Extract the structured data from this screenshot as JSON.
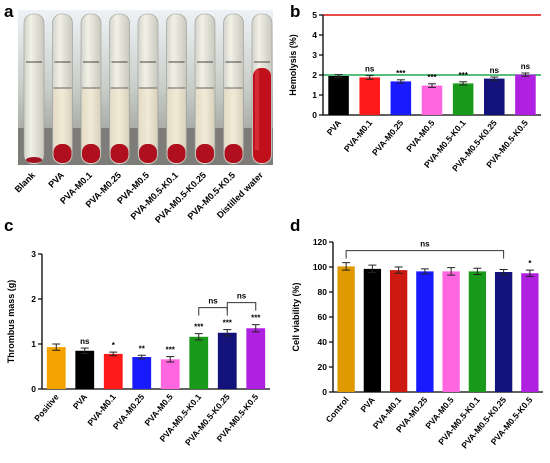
{
  "panels": {
    "a": "a",
    "b": "b",
    "c": "c",
    "d": "d"
  },
  "photo": {
    "tube_labels": [
      "Blank",
      "PVA",
      "PVA-M0.1",
      "PVA-M0.25",
      "PVA-M0.5",
      "PVA-M0.5-K0.1",
      "PVA-M0.5-K0.25",
      "PVA-M0.5-K0.5",
      "Distilled water"
    ]
  },
  "chart_data": [
    {
      "id": "b",
      "type": "bar",
      "categories": [
        "PVA",
        "PVA-M0.1",
        "PVA-M0.25",
        "PVA-M0.5",
        "PVA-M0.5-K0.1",
        "PVA-M0.5-K0.25",
        "PVA-M0.5-K0.5"
      ],
      "values": [
        1.95,
        1.88,
        1.68,
        1.47,
        1.58,
        1.82,
        2.02
      ],
      "errors": [
        0.07,
        0.09,
        0.08,
        0.09,
        0.08,
        0.08,
        0.08
      ],
      "significance": [
        "",
        "ns",
        "***",
        "***",
        "***",
        "ns",
        "ns"
      ],
      "colors": [
        "#000000",
        "#ff1a1a",
        "#1a1aff",
        "#ff66e0",
        "#1a9a1a",
        "#12127a",
        "#b020e0"
      ],
      "ylabel": "Hemolysis (%)",
      "ylim": [
        0,
        5
      ],
      "yticks": [
        0,
        1,
        2,
        3,
        4,
        5
      ],
      "reference_lines": [
        {
          "y": 5,
          "color": "#dd1111"
        },
        {
          "y": 2,
          "color": "#22aa55"
        }
      ]
    },
    {
      "id": "c",
      "type": "bar",
      "categories": [
        "Positive",
        "PVA",
        "PVA-M0.1",
        "PVA-M0.25",
        "PVA-M0.5",
        "PVA-M0.5-K0.1",
        "PVA-M0.5-K0.25",
        "PVA-M0.5-K0.5"
      ],
      "values": [
        0.93,
        0.85,
        0.78,
        0.71,
        0.66,
        1.16,
        1.25,
        1.35
      ],
      "errors": [
        0.07,
        0.06,
        0.04,
        0.04,
        0.06,
        0.07,
        0.07,
        0.08
      ],
      "significance": [
        "",
        "ns",
        "*",
        "**",
        "***",
        "***",
        "***",
        "***"
      ],
      "brackets": [
        {
          "from": 5,
          "to": 6,
          "label": "ns"
        },
        {
          "from": 6,
          "to": 7,
          "label": "ns"
        }
      ],
      "colors": [
        "#f5a300",
        "#000000",
        "#ff1a1a",
        "#1a1aff",
        "#ff66e0",
        "#1a9a1a",
        "#12127a",
        "#b020e0"
      ],
      "ylabel": "Thrombus mass (g)",
      "ylim": [
        0,
        3
      ],
      "yticks": [
        0,
        1,
        2,
        3
      ]
    },
    {
      "id": "d",
      "type": "bar",
      "categories": [
        "Control",
        "PVA",
        "PVA-M0.1",
        "PVA-M0.25",
        "PVA-M0.5",
        "PVA-M0.5-K0.1",
        "PVA-M0.5-K0.25",
        "PVA-M0.5-K0.5"
      ],
      "values": [
        100.5,
        98.5,
        97.5,
        96.5,
        96.5,
        96.5,
        96,
        95
      ],
      "errors": [
        3,
        3,
        2.5,
        2,
        3,
        2.5,
        2,
        2.5
      ],
      "significance": [
        "",
        "",
        "",
        "",
        "",
        "",
        "",
        "*"
      ],
      "brackets": [
        {
          "from": 0,
          "to": 6,
          "label": "ns"
        }
      ],
      "colors": [
        "#e09a00",
        "#000000",
        "#cc1a10",
        "#1a1aff",
        "#ff66e0",
        "#1a9a1a",
        "#12127a",
        "#b020e0"
      ],
      "ylabel": "Cell viability (%)",
      "ylim": [
        0,
        120
      ],
      "yticks": [
        0,
        20,
        40,
        60,
        80,
        100,
        120
      ]
    }
  ]
}
